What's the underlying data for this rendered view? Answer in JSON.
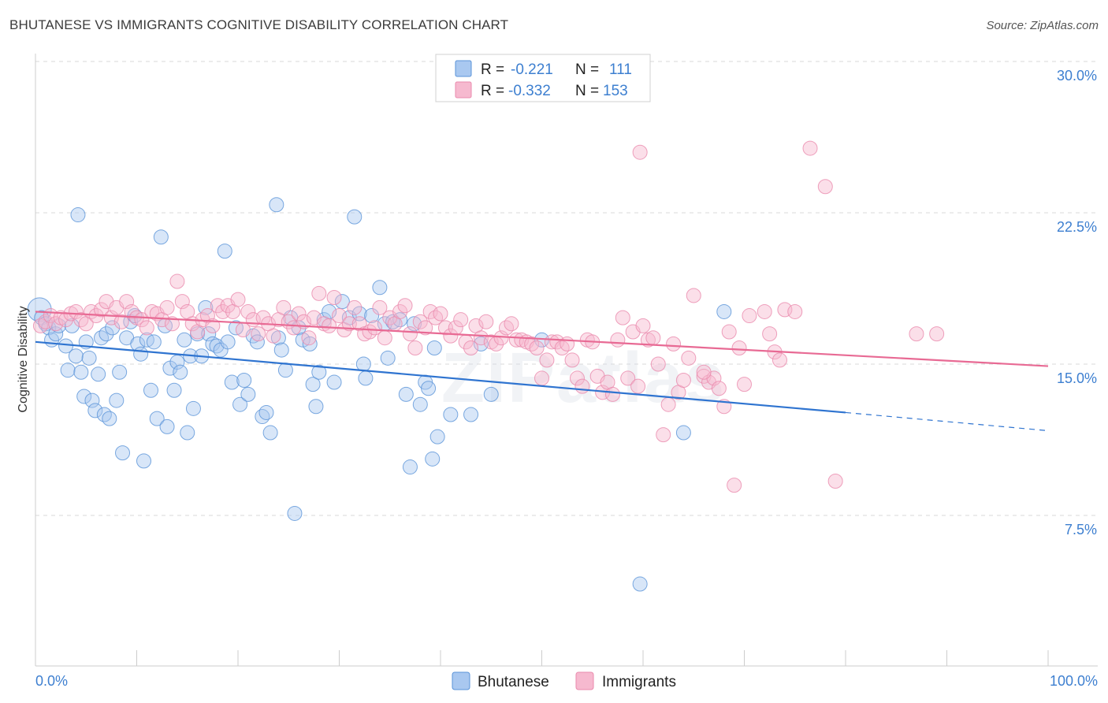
{
  "title": "BHUTANESE VS IMMIGRANTS COGNITIVE DISABILITY CORRELATION CHART",
  "source": "Source: ZipAtlas.com",
  "watermark": "ZIPatlas",
  "colors": {
    "blue_fill": "#a9c8f0",
    "blue_stroke": "#5a93d8",
    "blue_line": "#2f74d0",
    "pink_fill": "#f6b9cf",
    "pink_stroke": "#ea8aac",
    "pink_line": "#e86a94",
    "axis_text": "#3d7fd0",
    "grid": "#d9d9d9"
  },
  "legend": {
    "rows": [
      {
        "r_label": "R =",
        "r_value": "-0.221",
        "n_label": "N =",
        "n_value": "111"
      },
      {
        "r_label": "R =",
        "r_value": "-0.332",
        "n_label": "N =",
        "n_value": "153"
      }
    ]
  },
  "chart_data": {
    "type": "scatter",
    "title": "BHUTANESE VS IMMIGRANTS COGNITIVE DISABILITY CORRELATION CHART",
    "ylabel": "Cognitive Disability",
    "xlabel": "",
    "xlim": [
      0,
      100
    ],
    "ylim": [
      0,
      31.5
    ],
    "x_tick_labels": [
      "0.0%",
      "100.0%"
    ],
    "y_ticks": [
      7.5,
      15.0,
      22.5,
      30.0
    ],
    "y_tick_labels": [
      "7.5%",
      "15.0%",
      "22.5%",
      "30.0%"
    ],
    "grid": "horizontal dashed",
    "legend_position": "top-center and bottom",
    "series": [
      {
        "name": "Bhutanese",
        "r": -0.221,
        "n": 111,
        "trend": {
          "x0": 0,
          "y0": 16.1,
          "x1": 80,
          "y1": 12.6,
          "dashed_to_x": 100,
          "dashed_to_y": 11.7
        },
        "points": [
          [
            0.4,
            17.7
          ],
          [
            0.6,
            17.3
          ],
          [
            1.0,
            17.0
          ],
          [
            1.3,
            16.8
          ],
          [
            1.6,
            16.2
          ],
          [
            2.0,
            16.5
          ],
          [
            2.3,
            16.9
          ],
          [
            3.0,
            15.9
          ],
          [
            3.2,
            14.7
          ],
          [
            3.6,
            16.9
          ],
          [
            4.0,
            15.4
          ],
          [
            4.2,
            22.4
          ],
          [
            4.5,
            14.6
          ],
          [
            4.8,
            13.4
          ],
          [
            5.0,
            16.1
          ],
          [
            5.3,
            15.3
          ],
          [
            5.6,
            13.2
          ],
          [
            5.9,
            12.7
          ],
          [
            6.2,
            14.5
          ],
          [
            6.5,
            16.3
          ],
          [
            6.8,
            12.5
          ],
          [
            7.0,
            16.5
          ],
          [
            7.3,
            12.3
          ],
          [
            7.6,
            16.8
          ],
          [
            8.0,
            13.2
          ],
          [
            8.3,
            14.6
          ],
          [
            8.6,
            10.6
          ],
          [
            9.0,
            16.3
          ],
          [
            9.4,
            17.1
          ],
          [
            9.8,
            17.4
          ],
          [
            10.1,
            16.0
          ],
          [
            10.4,
            15.5
          ],
          [
            10.7,
            10.2
          ],
          [
            11.0,
            16.2
          ],
          [
            11.4,
            13.7
          ],
          [
            11.7,
            16.1
          ],
          [
            12.0,
            12.3
          ],
          [
            12.4,
            21.3
          ],
          [
            12.8,
            16.9
          ],
          [
            13.0,
            11.9
          ],
          [
            13.3,
            14.8
          ],
          [
            13.7,
            13.7
          ],
          [
            14.0,
            15.1
          ],
          [
            14.3,
            14.6
          ],
          [
            14.7,
            16.2
          ],
          [
            15.0,
            11.6
          ],
          [
            15.3,
            15.4
          ],
          [
            15.6,
            12.8
          ],
          [
            16.0,
            16.5
          ],
          [
            16.4,
            15.4
          ],
          [
            16.8,
            17.8
          ],
          [
            17.1,
            16.5
          ],
          [
            17.5,
            16.0
          ],
          [
            17.9,
            15.9
          ],
          [
            18.3,
            15.7
          ],
          [
            18.7,
            20.6
          ],
          [
            19.0,
            16.1
          ],
          [
            19.4,
            14.1
          ],
          [
            19.8,
            16.8
          ],
          [
            20.2,
            13.0
          ],
          [
            20.6,
            14.2
          ],
          [
            21.0,
            13.5
          ],
          [
            21.5,
            16.4
          ],
          [
            21.9,
            16.1
          ],
          [
            22.4,
            12.4
          ],
          [
            22.8,
            12.6
          ],
          [
            23.2,
            11.6
          ],
          [
            23.8,
            22.9
          ],
          [
            24.0,
            16.3
          ],
          [
            24.3,
            15.7
          ],
          [
            24.7,
            14.7
          ],
          [
            25.2,
            17.3
          ],
          [
            25.6,
            7.6
          ],
          [
            26.0,
            16.8
          ],
          [
            26.4,
            16.2
          ],
          [
            27.1,
            16.0
          ],
          [
            27.4,
            14.0
          ],
          [
            27.7,
            12.9
          ],
          [
            28.0,
            14.6
          ],
          [
            28.5,
            17.2
          ],
          [
            29.0,
            17.6
          ],
          [
            29.5,
            14.1
          ],
          [
            30.3,
            18.1
          ],
          [
            31.0,
            17.3
          ],
          [
            31.5,
            22.3
          ],
          [
            32.0,
            17.5
          ],
          [
            32.4,
            15.0
          ],
          [
            32.6,
            14.3
          ],
          [
            33.2,
            17.4
          ],
          [
            34.0,
            18.8
          ],
          [
            34.5,
            17.0
          ],
          [
            34.8,
            15.3
          ],
          [
            35.3,
            17.1
          ],
          [
            36.0,
            17.2
          ],
          [
            36.6,
            13.5
          ],
          [
            37.0,
            9.9
          ],
          [
            37.4,
            17.0
          ],
          [
            38.0,
            13.0
          ],
          [
            38.5,
            14.1
          ],
          [
            38.8,
            13.8
          ],
          [
            39.2,
            10.3
          ],
          [
            39.4,
            15.8
          ],
          [
            39.7,
            11.4
          ],
          [
            41.0,
            12.5
          ],
          [
            43.0,
            12.5
          ],
          [
            44.0,
            16.0
          ],
          [
            45.0,
            13.5
          ],
          [
            50.0,
            16.2
          ],
          [
            59.7,
            4.1
          ],
          [
            64.0,
            11.6
          ],
          [
            68.0,
            17.6
          ]
        ]
      },
      {
        "name": "Immigrants",
        "r": -0.332,
        "n": 153,
        "trend": {
          "x0": 0,
          "y0": 17.6,
          "x1": 100,
          "y1": 14.9
        },
        "points": [
          [
            0.5,
            16.9
          ],
          [
            1.0,
            17.1
          ],
          [
            1.5,
            17.4
          ],
          [
            2.0,
            17.0
          ],
          [
            2.5,
            17.3
          ],
          [
            3.0,
            17.2
          ],
          [
            3.5,
            17.5
          ],
          [
            4.0,
            17.6
          ],
          [
            4.5,
            17.2
          ],
          [
            5.0,
            17.0
          ],
          [
            5.5,
            17.6
          ],
          [
            6.0,
            17.4
          ],
          [
            6.5,
            17.7
          ],
          [
            7.0,
            18.1
          ],
          [
            7.5,
            17.3
          ],
          [
            8.0,
            17.8
          ],
          [
            8.5,
            17.1
          ],
          [
            9.0,
            18.1
          ],
          [
            9.5,
            17.6
          ],
          [
            10.0,
            17.3
          ],
          [
            10.5,
            17.2
          ],
          [
            11.0,
            16.8
          ],
          [
            11.5,
            17.6
          ],
          [
            12.0,
            17.5
          ],
          [
            12.5,
            17.2
          ],
          [
            13.0,
            17.8
          ],
          [
            13.5,
            17.0
          ],
          [
            14.0,
            19.1
          ],
          [
            14.5,
            18.1
          ],
          [
            15.0,
            17.6
          ],
          [
            15.5,
            17.0
          ],
          [
            16.0,
            16.6
          ],
          [
            16.5,
            17.2
          ],
          [
            17.0,
            17.4
          ],
          [
            17.5,
            16.9
          ],
          [
            18.0,
            17.9
          ],
          [
            18.5,
            17.6
          ],
          [
            19.0,
            17.9
          ],
          [
            19.5,
            17.6
          ],
          [
            20.0,
            18.2
          ],
          [
            20.5,
            16.7
          ],
          [
            21.0,
            17.6
          ],
          [
            21.5,
            17.2
          ],
          [
            22.0,
            16.5
          ],
          [
            22.5,
            17.3
          ],
          [
            23.0,
            17.0
          ],
          [
            23.5,
            16.4
          ],
          [
            24.0,
            17.2
          ],
          [
            24.5,
            17.8
          ],
          [
            25.0,
            17.1
          ],
          [
            25.5,
            16.8
          ],
          [
            26.0,
            17.5
          ],
          [
            26.5,
            17.1
          ],
          [
            27.0,
            16.3
          ],
          [
            27.5,
            17.3
          ],
          [
            28.0,
            18.5
          ],
          [
            28.5,
            17.0
          ],
          [
            29.0,
            16.9
          ],
          [
            29.5,
            18.3
          ],
          [
            30.0,
            17.4
          ],
          [
            30.5,
            16.7
          ],
          [
            31.0,
            17.0
          ],
          [
            31.5,
            17.8
          ],
          [
            32.0,
            17.0
          ],
          [
            32.5,
            16.5
          ],
          [
            33.0,
            16.6
          ],
          [
            33.5,
            16.8
          ],
          [
            34.0,
            17.8
          ],
          [
            34.5,
            16.3
          ],
          [
            35.0,
            17.3
          ],
          [
            35.5,
            17.0
          ],
          [
            36.0,
            17.6
          ],
          [
            36.5,
            17.9
          ],
          [
            37.0,
            16.5
          ],
          [
            37.5,
            15.8
          ],
          [
            38.0,
            17.1
          ],
          [
            38.5,
            16.8
          ],
          [
            39.0,
            17.6
          ],
          [
            39.5,
            17.3
          ],
          [
            40.0,
            17.5
          ],
          [
            40.5,
            16.8
          ],
          [
            41.0,
            16.4
          ],
          [
            41.5,
            16.8
          ],
          [
            42.0,
            17.2
          ],
          [
            42.5,
            16.1
          ],
          [
            43.0,
            15.8
          ],
          [
            43.5,
            16.9
          ],
          [
            44.0,
            16.3
          ],
          [
            44.5,
            17.1
          ],
          [
            45.0,
            16.1
          ],
          [
            45.5,
            16.0
          ],
          [
            46.0,
            16.3
          ],
          [
            46.5,
            16.8
          ],
          [
            47.0,
            17.0
          ],
          [
            47.5,
            16.2
          ],
          [
            48.0,
            16.2
          ],
          [
            48.5,
            16.1
          ],
          [
            49.0,
            16.0
          ],
          [
            49.5,
            15.8
          ],
          [
            50.0,
            14.3
          ],
          [
            50.5,
            15.2
          ],
          [
            51.0,
            16.1
          ],
          [
            51.5,
            16.1
          ],
          [
            52.0,
            15.8
          ],
          [
            52.5,
            16.0
          ],
          [
            53.0,
            15.2
          ],
          [
            53.5,
            14.3
          ],
          [
            54.0,
            13.9
          ],
          [
            54.5,
            16.2
          ],
          [
            55.0,
            16.1
          ],
          [
            55.5,
            14.4
          ],
          [
            56.0,
            13.6
          ],
          [
            56.5,
            14.1
          ],
          [
            57.0,
            13.5
          ],
          [
            57.5,
            16.2
          ],
          [
            58.0,
            17.3
          ],
          [
            58.5,
            14.3
          ],
          [
            59.0,
            16.6
          ],
          [
            59.5,
            13.9
          ],
          [
            60.0,
            16.9
          ],
          [
            60.5,
            16.2
          ],
          [
            61.0,
            16.3
          ],
          [
            61.5,
            15.0
          ],
          [
            62.0,
            11.5
          ],
          [
            62.5,
            13.0
          ],
          [
            63.0,
            16.0
          ],
          [
            63.5,
            13.6
          ],
          [
            64.0,
            14.2
          ],
          [
            64.5,
            15.3
          ],
          [
            65.0,
            18.4
          ],
          [
            66.0,
            14.4
          ],
          [
            66.5,
            14.1
          ],
          [
            67.0,
            14.3
          ],
          [
            67.5,
            13.8
          ],
          [
            68.0,
            12.9
          ],
          [
            68.5,
            16.6
          ],
          [
            69.0,
            9.0
          ],
          [
            70.0,
            14.0
          ],
          [
            70.5,
            17.4
          ],
          [
            72.0,
            17.6
          ],
          [
            72.5,
            16.5
          ],
          [
            73.0,
            15.6
          ],
          [
            73.5,
            15.2
          ],
          [
            74.0,
            17.7
          ],
          [
            75.0,
            17.6
          ],
          [
            76.5,
            25.7
          ],
          [
            78.0,
            23.8
          ],
          [
            79.0,
            9.2
          ],
          [
            87.0,
            16.5
          ],
          [
            89.0,
            16.5
          ],
          [
            59.7,
            25.5
          ],
          [
            66.0,
            14.6
          ],
          [
            69.5,
            15.8
          ]
        ]
      }
    ]
  },
  "bottom_legend": [
    {
      "label": "Bhutanese"
    },
    {
      "label": "Immigrants"
    }
  ]
}
